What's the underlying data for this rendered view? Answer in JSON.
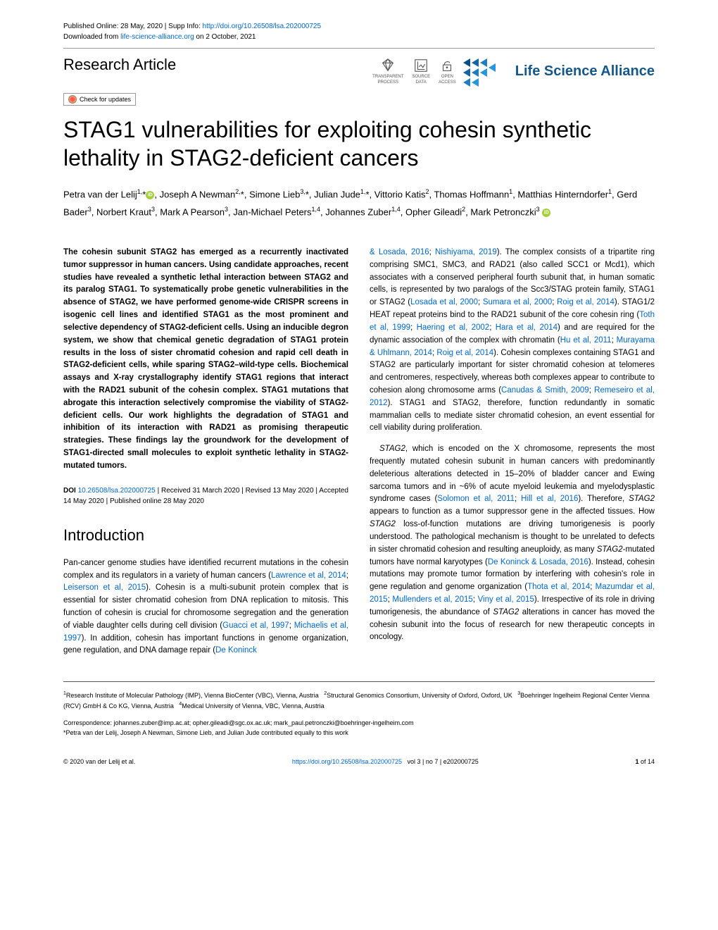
{
  "meta": {
    "published_label": "Published Online: 28 May, 2020 | Supp Info: ",
    "supp_link": "http://doi.org/10.26508/lsa.202000725",
    "downloaded_prefix": "Downloaded from ",
    "downloaded_site": "life-science-alliance.org",
    "downloaded_suffix": " on 2 October, 2021"
  },
  "article_type": "Research Article",
  "badges": {
    "transparent": "TRANSPARENT\nPROCESS",
    "source": "SOURCE\nDATA",
    "open": "OPEN\nACCESS"
  },
  "journal": "Life Science Alliance",
  "check_updates": "Check for updates",
  "title": "STAG1 vulnerabilities for exploiting cohesin synthetic lethality in STAG2-deficient cancers",
  "authors_html": "Petra van der Lelij<sup>1,</sup>*<span class='orcid-icon'></span>, Joseph A Newman<sup>2,</sup>*, Simone Lieb<sup>3,</sup>*, Julian Jude<sup>1,</sup>*, Vittorio Katis<sup>2</sup>, Thomas Hoffmann<sup>1</sup>, Matthias Hinterndorfer<sup>1</sup>, Gerd Bader<sup>3</sup>, Norbert Kraut<sup>3</sup>, Mark A Pearson<sup>3</sup>, Jan-Michael Peters<sup>1,4</sup>, Johannes Zuber<sup>1,4</sup>, Opher Gileadi<sup>2</sup>, Mark Petronczki<sup>3</sup> <span class='orcid-icon'></span>",
  "abstract": "The cohesin subunit STAG2 has emerged as a recurrently inactivated tumor suppressor in human cancers. Using candidate approaches, recent studies have revealed a synthetic lethal interaction between STAG2 and its paralog STAG1. To systematically probe genetic vulnerabilities in the absence of STAG2, we have performed genome-wide CRISPR screens in isogenic cell lines and identified STAG1 as the most prominent and selective dependency of STAG2-deficient cells. Using an inducible degron system, we show that chemical genetic degradation of STAG1 protein results in the loss of sister chromatid cohesion and rapid cell death in STAG2-deficient cells, while sparing STAG2–wild-type cells. Biochemical assays and X-ray crystallography identify STAG1 regions that interact with the RAD21 subunit of the cohesin complex. STAG1 mutations that abrogate this interaction selectively compromise the viability of STAG2-deficient cells. Our work highlights the degradation of STAG1 and inhibition of its interaction with RAD21 as promising therapeutic strategies. These findings lay the groundwork for the development of STAG1-directed small molecules to exploit synthetic lethality in STAG2-mutated tumors.",
  "doi": {
    "prefix": "DOI ",
    "link": "10.26508/lsa.202000725",
    "dates": " | Received 31 March 2020 | Revised 13 May 2020 | Accepted 14 May 2020 | Published online 28 May 2020"
  },
  "intro_heading": "Introduction",
  "intro_p1": "Pan-cancer genome studies have identified recurrent mutations in the cohesin complex and its regulators in a variety of human cancers (<span class='ref-link'>Lawrence et al, 2014</span>; <span class='ref-link'>Leiserson et al, 2015</span>). Cohesin is a multi-subunit protein complex that is essential for sister chromatid cohesion from DNA replication to mitosis. This function of cohesin is crucial for chromosome segregation and the generation of viable daughter cells during cell division (<span class='ref-link'>Guacci et al, 1997</span>; <span class='ref-link'>Michaelis et al, 1997</span>). In addition, cohesin has important functions in genome organization, gene regulation, and DNA damage repair (<span class='ref-link'>De Koninck</span>",
  "col2_p1": "<span class='ref-link'>& Losada, 2016</span>; <span class='ref-link'>Nishiyama, 2019</span>). The complex consists of a tripartite ring comprising SMC1, SMC3, and RAD21 (also called SCC1 or Mcd1), which associates with a conserved peripheral fourth subunit that, in human somatic cells, is represented by two paralogs of the Scc3/STAG protein family, STAG1 or STAG2 (<span class='ref-link'>Losada et al, 2000</span>; <span class='ref-link'>Sumara et al, 2000</span>; <span class='ref-link'>Roig et al, 2014</span>). STAG1/2 HEAT repeat proteins bind to the RAD21 subunit of the core cohesin ring (<span class='ref-link'>Toth et al, 1999</span>; <span class='ref-link'>Haering et al, 2002</span>; <span class='ref-link'>Hara et al, 2014</span>) and are required for the dynamic association of the complex with chromatin (<span class='ref-link'>Hu et al, 2011</span>; <span class='ref-link'>Murayama & Uhlmann, 2014</span>; <span class='ref-link'>Roig et al, 2014</span>). Cohesin complexes containing STAG1 and STAG2 are particularly important for sister chromatid cohesion at telomeres and centromeres, respectively, whereas both complexes appear to contribute to cohesion along chromosome arms (<span class='ref-link'>Canudas & Smith, 2009</span>; <span class='ref-link'>Remeseiro et al, 2012</span>). STAG1 and STAG2, therefore, function redundantly in somatic mammalian cells to mediate sister chromatid cohesion, an event essential for cell viability during proliferation.",
  "col2_p2": "<span class='italic'>STAG2</span>, which is encoded on the X chromosome, represents the most frequently mutated cohesin subunit in human cancers with predominantly deleterious alterations detected in 15–20% of bladder cancer and Ewing sarcoma tumors and in ~6% of acute myeloid leukemia and myelodysplastic syndrome cases (<span class='ref-link'>Solomon et al, 2011</span>; <span class='ref-link'>Hill et al, 2016</span>). Therefore, <span class='italic'>STAG2</span> appears to function as a tumor suppressor gene in the affected tissues. How <span class='italic'>STAG2</span> loss-of-function mutations are driving tumorigenesis is poorly understood. The pathological mechanism is thought to be unrelated to defects in sister chromatid cohesion and resulting aneuploidy, as many <span class='italic'>STAG2</span>-mutated tumors have normal karyotypes (<span class='ref-link'>De Koninck & Losada, 2016</span>). Instead, cohesin mutations may promote tumor formation by interfering with cohesin's role in gene regulation and genome organization (<span class='ref-link'>Thota et al, 2014</span>; <span class='ref-link'>Mazumdar et al, 2015</span>; <span class='ref-link'>Mullenders et al, 2015</span>; <span class='ref-link'>Viny et al, 2015</span>). Irrespective of its role in driving tumorigenesis, the abundance of <span class='italic'>STAG2</span> alterations in cancer has moved the cohesin subunit into the focus of research for new therapeutic concepts in oncology.",
  "affiliations": "<sup>1</sup>Research Institute of Molecular Pathology (IMP), Vienna BioCenter (VBC), Vienna, Austria&nbsp;&nbsp;&nbsp;<sup>2</sup>Structural Genomics Consortium, University of Oxford, Oxford, UK&nbsp;&nbsp;&nbsp;<sup>3</sup>Boehringer Ingelheim Regional Center Vienna (RCV) GmbH & Co KG, Vienna, Austria&nbsp;&nbsp;&nbsp;<sup>4</sup>Medical University of Vienna, VBC, Vienna, Austria",
  "correspondence": "Correspondence: johannes.zuber@imp.ac.at; opher.gileadi@sgc.ox.ac.uk; mark_paul.petronczki@boehringer-ingelheim.com",
  "equal_contrib": "*Petra van der Lelij, Joseph A Newman, Simone Lieb, and Julian Jude contributed equally to this work",
  "footer": {
    "copyright": "© 2020 van der Lelij et al.",
    "doi_link": "https://doi.org/10.26508/lsa.202000725",
    "vol_issue": "vol 3 | no 7 | e202000725",
    "page": "1 of 14"
  },
  "colors": {
    "link": "#0066cc",
    "lsa_blue": "#155789",
    "triangle_blues": [
      "#0b4d8a",
      "#1565a5",
      "#1f7dc0",
      "#2995db"
    ]
  }
}
